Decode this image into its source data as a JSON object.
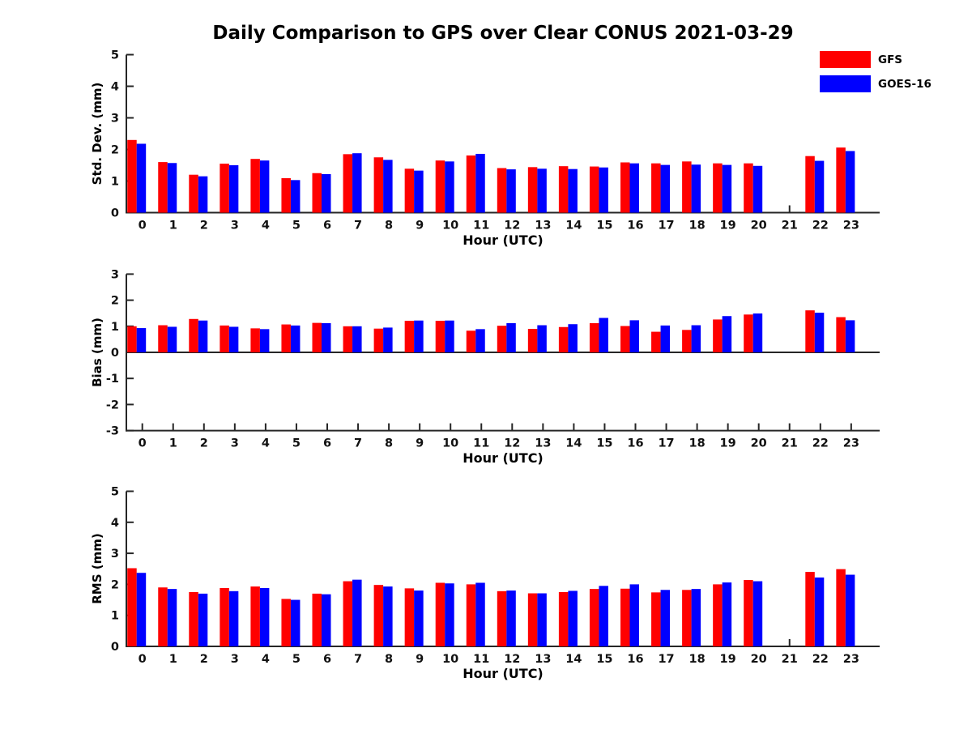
{
  "title": "Daily Comparison to GPS over Clear CONUS 2021-03-29",
  "legend": {
    "position": "upper right",
    "items": [
      {
        "label": "GFS",
        "color": "#ff0000"
      },
      {
        "label": "GOES-16",
        "color": "#0000ff"
      }
    ]
  },
  "chart_data": [
    {
      "type": "bar",
      "title": "",
      "ylabel": "Std. Dev. (mm)",
      "xlabel": "Hour (UTC)",
      "ylim": [
        0,
        5
      ],
      "yticks": [
        0,
        1,
        2,
        3,
        4,
        5
      ],
      "grid": false,
      "categories": [
        "0",
        "1",
        "2",
        "3",
        "4",
        "5",
        "6",
        "7",
        "8",
        "9",
        "10",
        "11",
        "12",
        "13",
        "14",
        "15",
        "16",
        "17",
        "18",
        "19",
        "20",
        "21",
        "22",
        "23"
      ],
      "series": [
        {
          "name": "GFS",
          "color": "#ff0000",
          "values": [
            2.3,
            1.6,
            1.2,
            1.55,
            1.7,
            1.09,
            1.25,
            1.85,
            1.75,
            1.39,
            1.65,
            1.81,
            1.41,
            1.44,
            1.47,
            1.46,
            1.59,
            1.56,
            1.62,
            1.56,
            1.56,
            null,
            1.79,
            2.06
          ]
        },
        {
          "name": "GOES-16",
          "color": "#0000ff",
          "values": [
            2.18,
            1.57,
            1.15,
            1.5,
            1.65,
            1.03,
            1.22,
            1.88,
            1.67,
            1.33,
            1.62,
            1.86,
            1.37,
            1.39,
            1.38,
            1.43,
            1.56,
            1.51,
            1.52,
            1.51,
            1.48,
            null,
            1.64,
            1.95
          ]
        }
      ]
    },
    {
      "type": "bar",
      "title": "",
      "ylabel": "Bias (mm)",
      "xlabel": "Hour (UTC)",
      "ylim": [
        -3,
        3
      ],
      "yticks": [
        -3,
        -2,
        -1,
        0,
        1,
        2,
        3
      ],
      "grid": false,
      "categories": [
        "0",
        "1",
        "2",
        "3",
        "4",
        "5",
        "6",
        "7",
        "8",
        "9",
        "10",
        "11",
        "12",
        "13",
        "14",
        "15",
        "16",
        "17",
        "18",
        "19",
        "20",
        "21",
        "22",
        "23"
      ],
      "series": [
        {
          "name": "GFS",
          "color": "#ff0000",
          "values": [
            1.0,
            1.04,
            1.28,
            1.03,
            0.92,
            1.07,
            1.13,
            1.0,
            0.91,
            1.21,
            1.21,
            0.83,
            1.02,
            0.9,
            0.97,
            1.12,
            1.01,
            0.79,
            0.86,
            1.26,
            1.45,
            null,
            1.61,
            1.35
          ]
        },
        {
          "name": "GOES-16",
          "color": "#0000ff",
          "values": [
            0.93,
            0.98,
            1.22,
            0.98,
            0.89,
            1.03,
            1.12,
            1.0,
            0.95,
            1.22,
            1.22,
            0.89,
            1.12,
            1.04,
            1.08,
            1.32,
            1.23,
            1.03,
            1.04,
            1.39,
            1.49,
            null,
            1.52,
            1.23
          ]
        }
      ]
    },
    {
      "type": "bar",
      "title": "",
      "ylabel": "RMS (mm)",
      "xlabel": "Hour (UTC)",
      "ylim": [
        0,
        5
      ],
      "yticks": [
        0,
        1,
        2,
        3,
        4,
        5
      ],
      "grid": false,
      "categories": [
        "0",
        "1",
        "2",
        "3",
        "4",
        "5",
        "6",
        "7",
        "8",
        "9",
        "10",
        "11",
        "12",
        "13",
        "14",
        "15",
        "16",
        "17",
        "18",
        "19",
        "20",
        "21",
        "22",
        "23"
      ],
      "series": [
        {
          "name": "GFS",
          "color": "#ff0000",
          "values": [
            2.52,
            1.9,
            1.75,
            1.88,
            1.93,
            1.53,
            1.7,
            2.1,
            1.98,
            1.87,
            2.05,
            2.0,
            1.78,
            1.71,
            1.75,
            1.85,
            1.86,
            1.74,
            1.82,
            2.0,
            2.14,
            null,
            2.4,
            2.49
          ]
        },
        {
          "name": "GOES-16",
          "color": "#0000ff",
          "values": [
            2.37,
            1.85,
            1.7,
            1.78,
            1.88,
            1.5,
            1.68,
            2.15,
            1.93,
            1.8,
            2.03,
            2.05,
            1.8,
            1.71,
            1.79,
            1.95,
            2.0,
            1.82,
            1.85,
            2.06,
            2.1,
            null,
            2.22,
            2.31
          ]
        }
      ]
    }
  ]
}
